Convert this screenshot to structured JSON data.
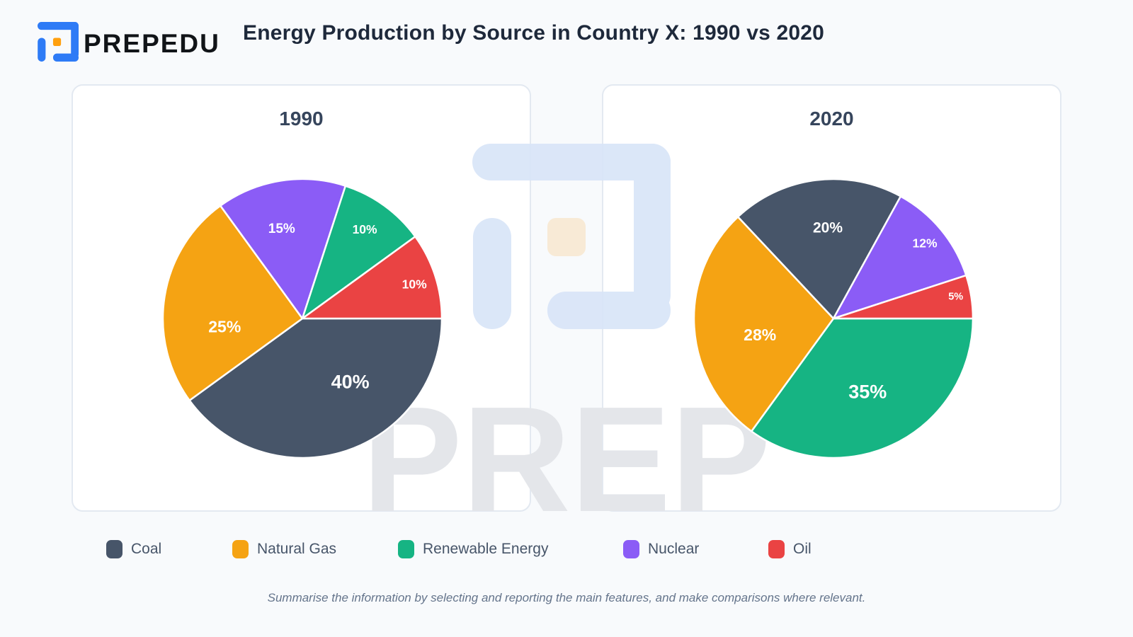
{
  "header": {
    "brand": "PREPEDU",
    "title": "Energy Production by Source in Country X: 1990 vs 2020"
  },
  "colors": {
    "coal": "#475569",
    "natural_gas": "#F5A313",
    "renewable_energy": "#16B483",
    "nuclear": "#8B5CF6",
    "oil": "#EA4343",
    "brand_blue": "#2E7BF6",
    "brand_orange": "#FFA00F",
    "watermark_blue": "#D9E5F8",
    "watermark_beige": "#F9E9D3"
  },
  "chart_data": [
    {
      "type": "pie",
      "title": "1990",
      "unit": "%",
      "slices": [
        {
          "label": "Coal",
          "value": 40,
          "color": "#475569"
        },
        {
          "label": "Natural Gas",
          "value": 25,
          "color": "#F5A313"
        },
        {
          "label": "Renewable Energy",
          "value": 10,
          "color": "#16B483"
        },
        {
          "label": "Nuclear",
          "value": 15,
          "color": "#8B5CF6"
        },
        {
          "label": "Oil",
          "value": 10,
          "color": "#EA4343"
        }
      ]
    },
    {
      "type": "pie",
      "title": "2020",
      "unit": "%",
      "slices": [
        {
          "label": "Coal",
          "value": 20,
          "color": "#475569"
        },
        {
          "label": "Natural Gas",
          "value": 28,
          "color": "#F5A313"
        },
        {
          "label": "Renewable Energy",
          "value": 35,
          "color": "#16B483"
        },
        {
          "label": "Nuclear",
          "value": 12,
          "color": "#8B5CF6"
        },
        {
          "label": "Oil",
          "value": 5,
          "color": "#EA4343"
        }
      ]
    }
  ],
  "legend": {
    "items": [
      {
        "label": "Coal",
        "color": "#475569"
      },
      {
        "label": "Natural Gas",
        "color": "#F5A313"
      },
      {
        "label": "Renewable Energy",
        "color": "#16B483"
      },
      {
        "label": "Nuclear",
        "color": "#8B5CF6"
      },
      {
        "label": "Oil",
        "color": "#EA4343"
      }
    ]
  },
  "watermark": {
    "text": "PREP"
  },
  "footer": {
    "instruction": "Summarise the information by selecting and reporting the main features, and make comparisons where relevant."
  }
}
